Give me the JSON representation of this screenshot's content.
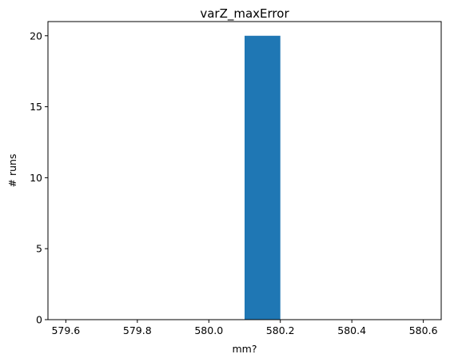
{
  "chart_data": {
    "type": "bar",
    "title": "varZ_maxError",
    "xlabel": "mm?",
    "ylabel": "# runs",
    "xlim": [
      579.55,
      580.65
    ],
    "ylim": [
      0,
      21
    ],
    "xticks": [
      579.6,
      579.8,
      580.0,
      580.2,
      580.4,
      580.6
    ],
    "xtick_labels": [
      "579.6",
      "579.8",
      "580.0",
      "580.2",
      "580.4",
      "580.6"
    ],
    "yticks": [
      0,
      5,
      10,
      15,
      20
    ],
    "ytick_labels": [
      "0",
      "5",
      "10",
      "15",
      "20"
    ],
    "bins": [
      {
        "x0": 580.1,
        "x1": 580.2,
        "count": 20
      }
    ],
    "bar_color": "#1f77b4",
    "grid": false
  }
}
